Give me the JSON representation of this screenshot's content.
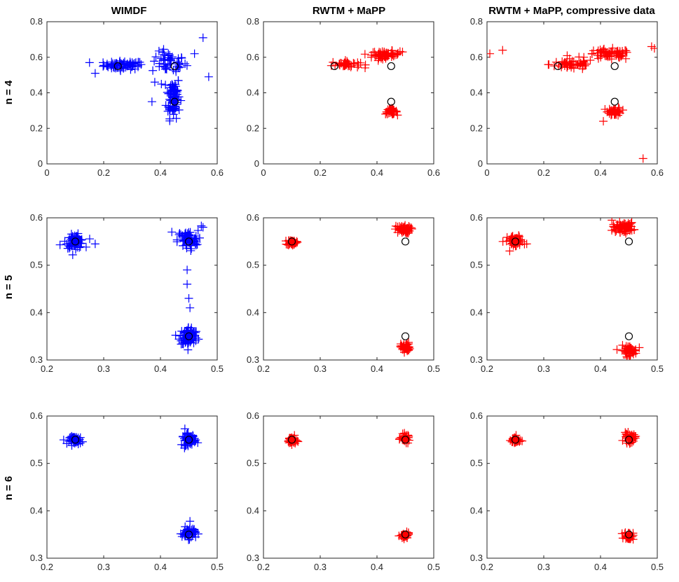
{
  "column_titles": [
    "WIMDF",
    "RWTM + MaPP",
    "RWTM + MaPP, compressive data"
  ],
  "row_labels": [
    "n = 4",
    "n = 5",
    "n = 6"
  ],
  "colors": {
    "wimdf": "#0000ff",
    "rwtm": "#ff0000",
    "truth": "#000000"
  },
  "chart_data": [
    {
      "id": "r0c0",
      "type": "scatter",
      "title": "WIMDF",
      "ylabel": "n = 4",
      "xlim": [
        0,
        0.6
      ],
      "ylim": [
        0,
        0.8
      ],
      "xticks": [
        "0",
        "0.2",
        "0.4",
        "0.6"
      ],
      "yticks": [
        "0",
        "0.2",
        "0.4",
        "0.6",
        "0.8"
      ],
      "color": "#0000ff",
      "truth": [
        [
          0.25,
          0.55
        ],
        [
          0.45,
          0.55
        ],
        [
          0.45,
          0.35
        ]
      ],
      "clusters": [
        {
          "cx": 0.27,
          "cy": 0.555,
          "sx": 0.035,
          "sy": 0.012,
          "n": 70
        },
        {
          "cx": 0.43,
          "cy": 0.57,
          "sx": 0.03,
          "sy": 0.03,
          "n": 45
        },
        {
          "cx": 0.445,
          "cy": 0.38,
          "sx": 0.012,
          "sy": 0.06,
          "n": 80
        }
      ],
      "outliers": [
        [
          0.55,
          0.71
        ],
        [
          0.57,
          0.49
        ],
        [
          0.15,
          0.57
        ],
        [
          0.17,
          0.51
        ],
        [
          0.38,
          0.46
        ],
        [
          0.37,
          0.35
        ],
        [
          0.52,
          0.62
        ]
      ]
    },
    {
      "id": "r0c1",
      "type": "scatter",
      "title": "RWTM + MaPP",
      "ylabel": "n = 4",
      "xlim": [
        0,
        0.6
      ],
      "ylim": [
        0,
        0.8
      ],
      "xticks": [
        "0",
        "0.2",
        "0.4",
        "0.6"
      ],
      "yticks": [
        "0",
        "0.2",
        "0.4",
        "0.6",
        "0.8"
      ],
      "color": "#ff0000",
      "truth": [
        [
          0.25,
          0.55
        ],
        [
          0.45,
          0.55
        ],
        [
          0.45,
          0.35
        ]
      ],
      "clusters": [
        {
          "cx": 0.29,
          "cy": 0.56,
          "sx": 0.025,
          "sy": 0.01,
          "n": 40
        },
        {
          "cx": 0.43,
          "cy": 0.615,
          "sx": 0.025,
          "sy": 0.01,
          "n": 60
        },
        {
          "cx": 0.45,
          "cy": 0.295,
          "sx": 0.01,
          "sy": 0.008,
          "n": 40
        }
      ],
      "outliers": [
        [
          0.38,
          0.6
        ],
        [
          0.49,
          0.63
        ]
      ]
    },
    {
      "id": "r0c2",
      "type": "scatter",
      "title": "RWTM + MaPP, compressive data",
      "ylabel": "n = 4",
      "xlim": [
        0,
        0.6
      ],
      "ylim": [
        0,
        0.8
      ],
      "xticks": [
        "0",
        "0.2",
        "0.4",
        "0.6"
      ],
      "yticks": [
        "0",
        "0.2",
        "0.4",
        "0.6",
        "0.8"
      ],
      "color": "#ff0000",
      "truth": [
        [
          0.25,
          0.55
        ],
        [
          0.45,
          0.55
        ],
        [
          0.45,
          0.35
        ]
      ],
      "clusters": [
        {
          "cx": 0.3,
          "cy": 0.56,
          "sx": 0.04,
          "sy": 0.015,
          "n": 50
        },
        {
          "cx": 0.43,
          "cy": 0.615,
          "sx": 0.04,
          "sy": 0.015,
          "n": 60
        },
        {
          "cx": 0.45,
          "cy": 0.295,
          "sx": 0.012,
          "sy": 0.012,
          "n": 40
        }
      ],
      "outliers": [
        [
          0.01,
          0.62
        ],
        [
          0.055,
          0.64
        ],
        [
          0.55,
          0.03
        ],
        [
          0.41,
          0.24
        ],
        [
          0.59,
          0.65
        ],
        [
          0.58,
          0.66
        ]
      ]
    },
    {
      "id": "r1c0",
      "type": "scatter",
      "title": "",
      "ylabel": "n = 5",
      "xlim": [
        0.2,
        0.5
      ],
      "ylim": [
        0.3,
        0.6
      ],
      "xticks": [
        "0.2",
        "0.3",
        "0.4",
        "0.5"
      ],
      "yticks": [
        "0.3",
        "0.4",
        "0.5",
        "0.6"
      ],
      "color": "#0000ff",
      "truth": [
        [
          0.25,
          0.55
        ],
        [
          0.45,
          0.55
        ],
        [
          0.45,
          0.35
        ]
      ],
      "clusters": [
        {
          "cx": 0.25,
          "cy": 0.55,
          "sx": 0.008,
          "sy": 0.007,
          "n": 70
        },
        {
          "cx": 0.448,
          "cy": 0.553,
          "sx": 0.009,
          "sy": 0.01,
          "n": 70
        },
        {
          "cx": 0.45,
          "cy": 0.35,
          "sx": 0.008,
          "sy": 0.01,
          "n": 80
        }
      ],
      "outliers": [
        [
          0.285,
          0.545
        ],
        [
          0.223,
          0.543
        ],
        [
          0.447,
          0.46
        ],
        [
          0.447,
          0.49
        ],
        [
          0.45,
          0.43
        ],
        [
          0.452,
          0.41
        ],
        [
          0.42,
          0.57
        ],
        [
          0.475,
          0.58
        ],
        [
          0.472,
          0.583
        ]
      ]
    },
    {
      "id": "r1c1",
      "type": "scatter",
      "title": "",
      "ylabel": "n = 5",
      "xlim": [
        0.2,
        0.5
      ],
      "ylim": [
        0.3,
        0.6
      ],
      "xticks": [
        "0.2",
        "0.3",
        "0.4",
        "0.5"
      ],
      "yticks": [
        "0.3",
        "0.4",
        "0.5",
        "0.6"
      ],
      "color": "#ff0000",
      "truth": [
        [
          0.25,
          0.55
        ],
        [
          0.45,
          0.55
        ],
        [
          0.45,
          0.35
        ]
      ],
      "clusters": [
        {
          "cx": 0.25,
          "cy": 0.548,
          "sx": 0.004,
          "sy": 0.003,
          "n": 45
        },
        {
          "cx": 0.445,
          "cy": 0.575,
          "sx": 0.007,
          "sy": 0.004,
          "n": 55
        },
        {
          "cx": 0.45,
          "cy": 0.327,
          "sx": 0.004,
          "sy": 0.005,
          "n": 45
        }
      ],
      "outliers": []
    },
    {
      "id": "r1c2",
      "type": "scatter",
      "title": "",
      "ylabel": "n = 5",
      "xlim": [
        0.2,
        0.5
      ],
      "ylim": [
        0.3,
        0.6
      ],
      "xticks": [
        "0.2",
        "0.3",
        "0.4",
        "0.5"
      ],
      "yticks": [
        "0.3",
        "0.4",
        "0.5",
        "0.6"
      ],
      "color": "#ff0000",
      "truth": [
        [
          0.25,
          0.55
        ],
        [
          0.45,
          0.55
        ],
        [
          0.45,
          0.35
        ]
      ],
      "clusters": [
        {
          "cx": 0.25,
          "cy": 0.55,
          "sx": 0.007,
          "sy": 0.006,
          "n": 60
        },
        {
          "cx": 0.44,
          "cy": 0.58,
          "sx": 0.009,
          "sy": 0.005,
          "n": 65
        },
        {
          "cx": 0.45,
          "cy": 0.32,
          "sx": 0.007,
          "sy": 0.005,
          "n": 55
        }
      ],
      "outliers": [
        [
          0.228,
          0.55
        ],
        [
          0.24,
          0.53
        ],
        [
          0.27,
          0.545
        ],
        [
          0.42,
          0.595
        ]
      ]
    },
    {
      "id": "r2c0",
      "type": "scatter",
      "title": "",
      "ylabel": "n = 6",
      "xlim": [
        0.2,
        0.5
      ],
      "ylim": [
        0.3,
        0.6
      ],
      "xticks": [
        "0.2",
        "0.3",
        "0.4",
        "0.5"
      ],
      "yticks": [
        "0.3",
        "0.4",
        "0.5",
        "0.6"
      ],
      "color": "#0000ff",
      "truth": [
        [
          0.25,
          0.55
        ],
        [
          0.45,
          0.55
        ],
        [
          0.45,
          0.35
        ]
      ],
      "clusters": [
        {
          "cx": 0.252,
          "cy": 0.549,
          "sx": 0.006,
          "sy": 0.004,
          "n": 55
        },
        {
          "cx": 0.45,
          "cy": 0.55,
          "sx": 0.006,
          "sy": 0.006,
          "n": 60
        },
        {
          "cx": 0.45,
          "cy": 0.353,
          "sx": 0.006,
          "sy": 0.006,
          "n": 55
        }
      ],
      "outliers": [
        [
          0.452,
          0.378
        ],
        [
          0.443,
          0.573
        ]
      ]
    },
    {
      "id": "r2c1",
      "type": "scatter",
      "title": "",
      "ylabel": "n = 6",
      "xlim": [
        0.2,
        0.5
      ],
      "ylim": [
        0.3,
        0.6
      ],
      "xticks": [
        "0.2",
        "0.3",
        "0.4",
        "0.5"
      ],
      "yticks": [
        "0.3",
        "0.4",
        "0.5",
        "0.6"
      ],
      "color": "#ff0000",
      "truth": [
        [
          0.25,
          0.55
        ],
        [
          0.45,
          0.55
        ],
        [
          0.45,
          0.35
        ]
      ],
      "clusters": [
        {
          "cx": 0.25,
          "cy": 0.549,
          "sx": 0.004,
          "sy": 0.004,
          "n": 40
        },
        {
          "cx": 0.45,
          "cy": 0.553,
          "sx": 0.004,
          "sy": 0.004,
          "n": 40
        },
        {
          "cx": 0.449,
          "cy": 0.347,
          "sx": 0.004,
          "sy": 0.003,
          "n": 40
        }
      ],
      "outliers": []
    },
    {
      "id": "r2c2",
      "type": "scatter",
      "title": "",
      "ylabel": "n = 6",
      "xlim": [
        0.2,
        0.5
      ],
      "ylim": [
        0.3,
        0.6
      ],
      "xticks": [
        "0.2",
        "0.3",
        "0.4",
        "0.5"
      ],
      "yticks": [
        "0.3",
        "0.4",
        "0.5",
        "0.6"
      ],
      "color": "#ff0000",
      "truth": [
        [
          0.25,
          0.55
        ],
        [
          0.45,
          0.55
        ],
        [
          0.45,
          0.35
        ]
      ],
      "clusters": [
        {
          "cx": 0.25,
          "cy": 0.549,
          "sx": 0.004,
          "sy": 0.004,
          "n": 40
        },
        {
          "cx": 0.451,
          "cy": 0.553,
          "sx": 0.005,
          "sy": 0.005,
          "n": 45
        },
        {
          "cx": 0.45,
          "cy": 0.347,
          "sx": 0.004,
          "sy": 0.004,
          "n": 40
        }
      ],
      "outliers": []
    }
  ]
}
